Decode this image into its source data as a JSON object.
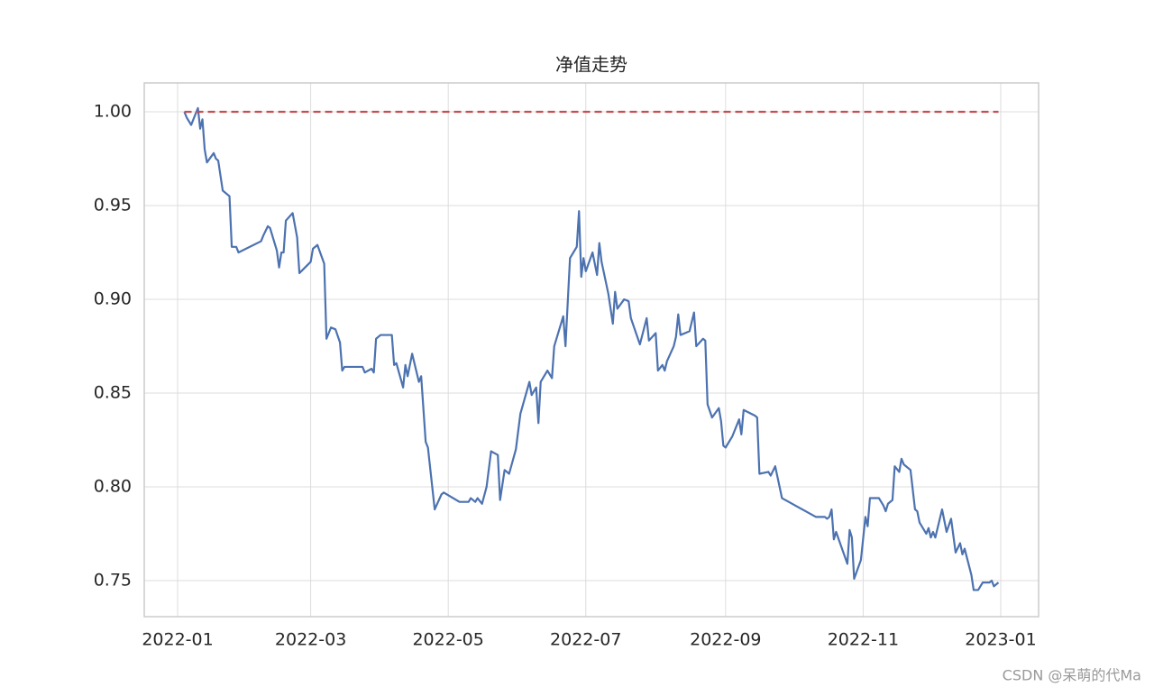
{
  "chart_data": {
    "type": "line",
    "title": "净值走势",
    "series": [
      {
        "color": "#4c72b0",
        "style": "solid",
        "x": [
          3,
          4,
          6,
          9,
          10,
          11,
          12,
          13,
          16,
          17,
          18,
          20,
          23,
          24,
          26,
          27,
          37,
          38,
          40,
          41,
          44,
          45,
          46,
          47,
          48,
          51,
          53,
          54,
          59,
          60,
          62,
          65,
          66,
          68,
          70,
          72,
          73,
          74,
          82,
          83,
          86,
          87,
          88,
          90,
          95,
          96,
          97,
          100,
          101,
          102,
          104,
          107,
          108,
          110,
          111,
          114,
          117,
          118,
          125,
          129,
          130,
          132,
          133,
          135,
          137,
          139,
          142,
          143,
          145,
          147,
          150,
          152,
          156,
          157,
          159,
          160,
          161,
          164,
          166,
          167,
          171,
          172,
          174,
          177,
          178,
          179,
          180,
          181,
          184,
          186,
          187,
          188,
          191,
          193,
          194,
          195,
          198,
          200,
          201,
          205,
          208,
          209,
          212,
          213,
          215,
          216,
          217,
          220,
          221,
          222,
          223,
          227,
          229,
          230,
          233,
          234,
          235,
          237,
          240,
          241,
          242,
          243,
          246,
          249,
          250,
          251,
          256,
          257,
          258,
          262,
          263,
          265,
          268,
          271,
          283,
          287,
          288,
          289,
          290,
          291,
          292,
          297,
          298,
          299,
          300,
          303,
          305,
          306,
          307,
          311,
          313,
          314,
          315,
          317,
          318,
          320,
          321,
          322,
          325,
          327,
          328,
          329,
          332,
          333,
          334,
          335,
          336,
          339,
          341,
          343,
          345,
          347,
          348,
          349,
          352,
          353,
          355,
          357,
          360,
          361,
          362,
          364
        ],
        "values": [
          1.0,
          0.997,
          0.993,
          1.002,
          0.991,
          0.996,
          0.98,
          0.973,
          0.978,
          0.975,
          0.974,
          0.958,
          0.955,
          0.928,
          0.928,
          0.925,
          0.931,
          0.934,
          0.939,
          0.938,
          0.926,
          0.917,
          0.925,
          0.925,
          0.942,
          0.946,
          0.933,
          0.914,
          0.92,
          0.927,
          0.929,
          0.919,
          0.879,
          0.885,
          0.884,
          0.877,
          0.862,
          0.864,
          0.864,
          0.861,
          0.863,
          0.861,
          0.879,
          0.881,
          0.881,
          0.865,
          0.866,
          0.853,
          0.865,
          0.859,
          0.871,
          0.856,
          0.859,
          0.824,
          0.821,
          0.788,
          0.796,
          0.797,
          0.792,
          0.792,
          0.794,
          0.792,
          0.794,
          0.791,
          0.8,
          0.819,
          0.817,
          0.793,
          0.809,
          0.807,
          0.82,
          0.839,
          0.856,
          0.849,
          0.853,
          0.834,
          0.856,
          0.862,
          0.858,
          0.875,
          0.891,
          0.875,
          0.922,
          0.928,
          0.947,
          0.912,
          0.922,
          0.915,
          0.925,
          0.913,
          0.93,
          0.92,
          0.903,
          0.887,
          0.904,
          0.895,
          0.9,
          0.899,
          0.89,
          0.876,
          0.89,
          0.878,
          0.882,
          0.862,
          0.865,
          0.862,
          0.867,
          0.875,
          0.88,
          0.892,
          0.881,
          0.883,
          0.893,
          0.875,
          0.879,
          0.878,
          0.844,
          0.837,
          0.842,
          0.835,
          0.822,
          0.821,
          0.827,
          0.836,
          0.828,
          0.841,
          0.838,
          0.837,
          0.807,
          0.808,
          0.806,
          0.811,
          0.794,
          0.792,
          0.784,
          0.784,
          0.783,
          0.784,
          0.788,
          0.772,
          0.776,
          0.759,
          0.777,
          0.773,
          0.751,
          0.761,
          0.784,
          0.779,
          0.794,
          0.794,
          0.79,
          0.787,
          0.791,
          0.793,
          0.811,
          0.808,
          0.815,
          0.812,
          0.809,
          0.788,
          0.787,
          0.781,
          0.775,
          0.778,
          0.773,
          0.776,
          0.773,
          0.788,
          0.776,
          0.783,
          0.765,
          0.77,
          0.764,
          0.767,
          0.753,
          0.745,
          0.745,
          0.749,
          0.749,
          0.75,
          0.747,
          0.749
        ]
      },
      {
        "color": "#c44e52",
        "style": "dashed",
        "x": [
          3,
          364
        ],
        "values": [
          1,
          1
        ]
      }
    ],
    "xlim": [
      -14.8,
      381.8
    ],
    "xticks": [
      {
        "value": 0,
        "label": "2022-01"
      },
      {
        "value": 59,
        "label": "2022-03"
      },
      {
        "value": 120,
        "label": "2022-05"
      },
      {
        "value": 181,
        "label": "2022-07"
      },
      {
        "value": 243,
        "label": "2022-09"
      },
      {
        "value": 304,
        "label": "2022-11"
      },
      {
        "value": 365,
        "label": "2023-01"
      }
    ],
    "ylim": [
      0.7308,
      1.0154
    ],
    "yticks": [
      0.75,
      {
        "value": 0.8,
        "label": "0.80"
      },
      0.85,
      {
        "value": 0.9,
        "label": "0.90"
      },
      0.95,
      {
        "value": 1,
        "label": "1.00"
      }
    ],
    "grid": true
  },
  "watermark": "CSDN @呆萌的代Ma"
}
